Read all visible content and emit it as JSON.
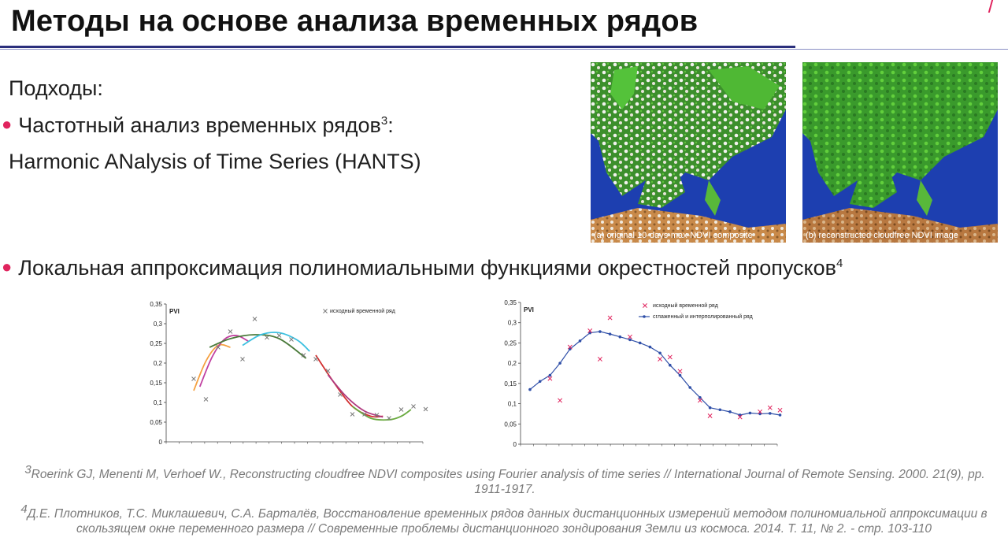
{
  "slide": {
    "title": "Методы на основе анализа временных рядов",
    "approaches_label": "Подходы:",
    "bullet1_text": "Частотный анализ временных рядов",
    "bullet1_sup": "3",
    "bullet1_colon": ":",
    "hants_text": "Harmonic ANalysis of Time Series (HANTS)",
    "bullet2_text": "Локальная аппроксимация полиномиальными функциями окрестностей пропусков",
    "bullet2_sup": "4",
    "accent_color": "#e0245e",
    "rule_color": "#2b2f7c"
  },
  "maps": {
    "left_caption": "(a) original 10-days-max-NDVI composite",
    "right_caption": "(b) reconstructed cloudfree NDVI image"
  },
  "references": {
    "ref3_sup": "3",
    "ref3_text": "Roerink GJ, Menenti M, Verhoef W., Reconstructing cloudfree NDVI composites using Fourier analysis of time series // International Journal of Remote Sensing. 2000. 21(9), pp. 1911-1917.",
    "ref4_sup": "4",
    "ref4_text": "Д.Е. Плотников, Т.С. Миклашевич, С.А. Барталёв, Восстановление временных рядов данных дистанционных измерений методом полиномиальной аппроксимации в скользящем окне переменного размера // Современные проблемы дистанционного зондирования Земли из космоса. 2014. Т. 11, № 2. - стр. 103-110"
  },
  "chart_data": [
    {
      "type": "scatter",
      "ylabel": "PVI",
      "ylim": [
        0,
        0.35
      ],
      "yticks": [
        "0",
        "0,05",
        "0,1",
        "0,15",
        "0,2",
        "0,25",
        "0,3",
        "0,35"
      ],
      "legend": [
        "исходный временной ряд"
      ],
      "legend_position": "top-right",
      "points": [
        [
          1,
          0.16
        ],
        [
          2,
          0.108
        ],
        [
          3,
          0.24
        ],
        [
          4,
          0.28
        ],
        [
          5,
          0.21
        ],
        [
          6,
          0.312
        ],
        [
          7,
          0.265
        ],
        [
          8,
          0.27
        ],
        [
          9,
          0.26
        ],
        [
          10,
          0.22
        ],
        [
          11,
          0.21
        ],
        [
          12,
          0.18
        ],
        [
          13,
          0.12
        ],
        [
          14,
          0.07
        ],
        [
          15,
          0.07
        ],
        [
          16,
          0.068
        ],
        [
          17,
          0.06
        ],
        [
          18,
          0.082
        ],
        [
          19,
          0.09
        ],
        [
          20,
          0.083
        ]
      ],
      "fit_curves": [
        {
          "color": "#f5a040",
          "x": [
            1.0,
            2.0,
            3.0,
            4.0
          ],
          "y": [
            0.13,
            0.205,
            0.245,
            0.24
          ]
        },
        {
          "color": "#c040a0",
          "x": [
            1.5,
            2.5,
            3.5,
            4.5,
            5.5
          ],
          "y": [
            0.14,
            0.215,
            0.26,
            0.27,
            0.255
          ]
        },
        {
          "color": "#4a7a3a",
          "x": [
            2.3,
            4.0,
            6.0,
            8.0,
            10.2
          ],
          "y": [
            0.24,
            0.262,
            0.272,
            0.262,
            0.212
          ]
        },
        {
          "color": "#3cc0e0",
          "x": [
            5.0,
            6.5,
            8.0,
            9.5,
            10.5
          ],
          "y": [
            0.245,
            0.272,
            0.277,
            0.258,
            0.23
          ]
        },
        {
          "color": "#d23030",
          "x": [
            11.0,
            12.5,
            14.0,
            15.5,
            16.5
          ],
          "y": [
            0.22,
            0.15,
            0.09,
            0.065,
            0.065
          ]
        },
        {
          "color": "#b03a80",
          "x": [
            12.0,
            13.5,
            15.0,
            16.5
          ],
          "y": [
            0.17,
            0.115,
            0.078,
            0.063
          ]
        },
        {
          "color": "#6aaa40",
          "x": [
            14.0,
            15.5,
            17.0,
            18.0,
            18.8
          ],
          "y": [
            0.09,
            0.06,
            0.056,
            0.065,
            0.082
          ]
        }
      ]
    },
    {
      "type": "line",
      "ylabel": "PVI",
      "ylim": [
        0,
        0.35
      ],
      "yticks": [
        "0",
        "0,05",
        "0,1",
        "0,15",
        "0,2",
        "0,25",
        "0,3",
        "0,35"
      ],
      "legend_position": "top-right",
      "series": [
        {
          "name": "исходный временной ряд",
          "kind": "markers",
          "color": "#e0245e",
          "points": [
            [
              2,
              0.162
            ],
            [
              3,
              0.108
            ],
            [
              4,
              0.24
            ],
            [
              6,
              0.28
            ],
            [
              7,
              0.21
            ],
            [
              8,
              0.312
            ],
            [
              10,
              0.265
            ],
            [
              13,
              0.21
            ],
            [
              14,
              0.215
            ],
            [
              15,
              0.18
            ],
            [
              17,
              0.108
            ],
            [
              18,
              0.07
            ],
            [
              21,
              0.067
            ],
            [
              23,
              0.08
            ],
            [
              24,
              0.09
            ],
            [
              25,
              0.084
            ]
          ]
        },
        {
          "name": "сглаженный и интерполированный ряд",
          "kind": "line",
          "color": "#2f4fa8",
          "x": [
            0,
            1,
            2,
            3,
            4,
            5,
            6,
            7,
            8,
            9,
            10,
            11,
            12,
            13,
            14,
            15,
            16,
            17,
            18,
            19,
            20,
            21,
            22,
            23,
            24,
            25
          ],
          "y": [
            0.135,
            0.155,
            0.17,
            0.2,
            0.235,
            0.255,
            0.275,
            0.278,
            0.272,
            0.265,
            0.258,
            0.25,
            0.24,
            0.225,
            0.195,
            0.17,
            0.14,
            0.115,
            0.09,
            0.085,
            0.08,
            0.072,
            0.077,
            0.075,
            0.076,
            0.072
          ]
        }
      ]
    }
  ]
}
